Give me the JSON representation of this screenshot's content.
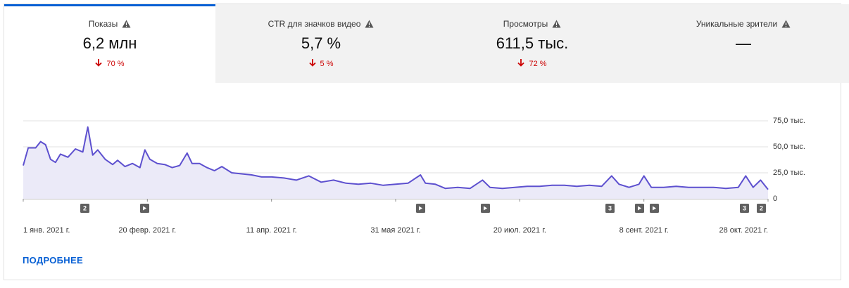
{
  "tabs": [
    {
      "label": "Показы",
      "value": "6,2 млн",
      "change": "70 %"
    },
    {
      "label": "CTR для значков видео",
      "value": "5,7 %",
      "change": "5 %"
    },
    {
      "label": "Просмотры",
      "value": "611,5 тыс.",
      "change": "72 %"
    },
    {
      "label": "Уникальные зрители",
      "value": "—"
    }
  ],
  "chart_data": {
    "type": "area",
    "color": "#5d50cf",
    "fill": "#ebeaf8",
    "grid": true,
    "x": [
      0,
      2,
      5,
      7,
      9,
      11,
      13,
      15,
      18,
      21,
      24,
      26,
      28,
      30,
      33,
      36,
      38,
      41,
      44,
      47,
      49,
      51,
      54,
      57,
      60,
      63,
      66,
      68,
      71,
      74,
      77,
      80,
      84,
      88,
      92,
      96,
      100,
      105,
      110,
      115,
      120,
      125,
      130,
      135,
      140,
      145,
      150,
      155,
      160,
      162,
      166,
      170,
      175,
      180,
      185,
      188,
      193,
      198,
      203,
      208,
      213,
      218,
      223,
      228,
      233,
      237,
      240,
      244,
      248,
      250,
      253,
      258,
      263,
      268,
      273,
      278,
      283,
      288,
      291,
      294,
      297,
      300
    ],
    "values": [
      32000,
      49000,
      49000,
      55000,
      52000,
      38000,
      35000,
      43000,
      40000,
      48000,
      45000,
      69000,
      42000,
      47000,
      38000,
      33000,
      37000,
      31000,
      34000,
      30000,
      47000,
      38000,
      34000,
      33000,
      30000,
      32000,
      44000,
      34000,
      34000,
      30000,
      27000,
      31000,
      25000,
      24000,
      23000,
      21000,
      21000,
      20000,
      18000,
      22000,
      16000,
      18000,
      15000,
      14000,
      15000,
      13000,
      14000,
      15000,
      23000,
      15000,
      14000,
      10000,
      11000,
      10000,
      18000,
      11000,
      10000,
      11000,
      12000,
      12000,
      13000,
      13000,
      12000,
      13000,
      12000,
      22000,
      14000,
      11000,
      14000,
      22000,
      11000,
      11000,
      12000,
      11000,
      11000,
      11000,
      10000,
      11000,
      22000,
      11000,
      18000,
      9000
    ],
    "xlim": [
      0,
      300
    ],
    "xticks": [
      {
        "value": 0,
        "label": "1 янв. 2021 г."
      },
      {
        "value": 50,
        "label": "20 февр. 2021 г."
      },
      {
        "value": 100,
        "label": "11 апр. 2021 г."
      },
      {
        "value": 150,
        "label": "31 мая 2021 г."
      },
      {
        "value": 200,
        "label": "20 июл. 2021 г."
      },
      {
        "value": 250,
        "label": "8 сент. 2021 г."
      },
      {
        "value": 300,
        "label": "28 окт. 2021 г."
      }
    ],
    "ylim": [
      0,
      75000
    ],
    "yticks": [
      0,
      {
        "value": 25000,
        "label": "25,0 тыс."
      },
      {
        "value": 50000,
        "label": "50,0 тыс."
      },
      {
        "value": 75000,
        "label": "75,0 тыс."
      }
    ],
    "event_markers": [
      "2",
      "3",
      "3",
      "2"
    ]
  },
  "link": "ПОДРОБНЕЕ"
}
